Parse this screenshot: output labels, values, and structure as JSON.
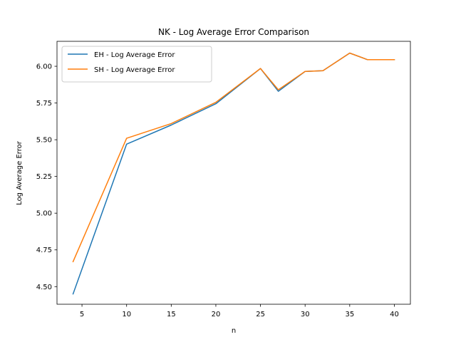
{
  "chart_data": {
    "type": "line",
    "title": "NK - Log Average Error Comparison",
    "xlabel": "n",
    "ylabel": "Log Average Error",
    "xlim": [
      2.2,
      41.8
    ],
    "ylim": [
      4.38,
      6.17
    ],
    "xticks": [
      5,
      10,
      15,
      20,
      25,
      30,
      35,
      40
    ],
    "yticks": [
      4.5,
      4.75,
      5.0,
      5.25,
      5.5,
      5.75,
      6.0
    ],
    "grid": false,
    "legend_position": "top-left",
    "x": [
      4,
      10,
      15,
      20,
      25,
      27,
      30,
      32,
      35,
      37,
      40
    ],
    "series": [
      {
        "name": "EH - Log Average Error",
        "color": "#1f77b4",
        "values": [
          4.45,
          5.47,
          5.6,
          5.745,
          5.985,
          5.83,
          5.965,
          5.97,
          6.09,
          6.045,
          6.045
        ]
      },
      {
        "name": "SH - Log Average Error",
        "color": "#ff7f0e",
        "values": [
          4.67,
          5.51,
          5.61,
          5.755,
          5.985,
          5.84,
          5.965,
          5.97,
          6.09,
          6.045,
          6.045
        ]
      }
    ]
  }
}
